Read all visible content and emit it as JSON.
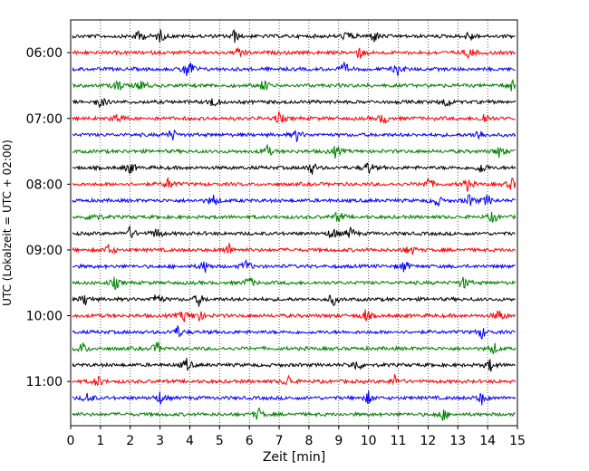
{
  "chart_data": {
    "type": "line",
    "subtype": "helicorder",
    "title": "",
    "xlabel": "Zeit  [min]",
    "ylabel": "UTC (Lokalzeit = UTC + 02:00)",
    "xlim": [
      0,
      15
    ],
    "x_ticks": [
      "0",
      "1",
      "2",
      "3",
      "4",
      "5",
      "6",
      "7",
      "8",
      "9",
      "10",
      "11",
      "12",
      "13",
      "14",
      "15"
    ],
    "y_tick_labels": [
      "06:00",
      "07:00",
      "08:00",
      "09:00",
      "10:00",
      "11:00"
    ],
    "trace_interval_minutes": 15,
    "trace_colors": [
      "#000000",
      "#ff0000",
      "#0000ff",
      "#008000"
    ],
    "vertical_grid": "dotted",
    "traces": [
      {
        "start": "05:45",
        "color": "#000000",
        "events": [
          2.3,
          3.0,
          5.5,
          9.3,
          10.2,
          13.4
        ]
      },
      {
        "start": "06:00",
        "color": "#ff0000",
        "events": [
          5.7,
          9.7,
          13.4
        ]
      },
      {
        "start": "06:15",
        "color": "#0000ff",
        "events": [
          3.9,
          4.0,
          9.2,
          11.0
        ]
      },
      {
        "start": "06:30",
        "color": "#008000",
        "events": [
          1.6,
          2.4,
          6.5,
          14.8
        ]
      },
      {
        "start": "06:45",
        "color": "#000000",
        "events": [
          1.0,
          4.8,
          12.6
        ]
      },
      {
        "start": "07:00",
        "color": "#ff0000",
        "events": [
          1.6,
          7.0,
          10.5,
          13.9
        ]
      },
      {
        "start": "07:15",
        "color": "#0000ff",
        "events": [
          3.4,
          7.6,
          13.7
        ]
      },
      {
        "start": "07:30",
        "color": "#008000",
        "events": [
          6.6,
          8.9,
          14.4
        ]
      },
      {
        "start": "07:45",
        "color": "#000000",
        "events": [
          2.0,
          8.1,
          10.0,
          13.8
        ]
      },
      {
        "start": "08:00",
        "color": "#ff0000",
        "events": [
          3.3,
          12.0,
          13.3,
          14.8
        ]
      },
      {
        "start": "08:15",
        "color": "#0000ff",
        "events": [
          4.8,
          12.3,
          13.4,
          14.0
        ]
      },
      {
        "start": "08:30",
        "color": "#008000",
        "events": [
          0.8,
          9.0,
          14.2
        ]
      },
      {
        "start": "08:45",
        "color": "#000000",
        "events": [
          2.0,
          2.9,
          8.8,
          9.4
        ]
      },
      {
        "start": "09:00",
        "color": "#ff0000",
        "events": [
          1.3,
          5.3,
          11.4
        ]
      },
      {
        "start": "09:15",
        "color": "#0000ff",
        "events": [
          4.5,
          5.9,
          11.2
        ]
      },
      {
        "start": "09:30",
        "color": "#008000",
        "events": [
          1.5,
          6.0,
          13.2
        ]
      },
      {
        "start": "09:45",
        "color": "#000000",
        "events": [
          0.5,
          2.9,
          4.3,
          8.8
        ]
      },
      {
        "start": "10:00",
        "color": "#ff0000",
        "events": [
          3.8,
          4.3,
          9.9,
          14.4
        ]
      },
      {
        "start": "10:15",
        "color": "#0000ff",
        "events": [
          3.6,
          13.8
        ]
      },
      {
        "start": "10:30",
        "color": "#008000",
        "events": [
          0.4,
          2.9,
          14.2
        ]
      },
      {
        "start": "10:45",
        "color": "#000000",
        "events": [
          3.9,
          9.6,
          14.1
        ]
      },
      {
        "start": "11:00",
        "color": "#ff0000",
        "events": [
          0.9,
          7.3,
          10.9
        ]
      },
      {
        "start": "11:15",
        "color": "#0000ff",
        "events": [
          0.6,
          3.0,
          10.0,
          13.8
        ]
      },
      {
        "start": "11:30",
        "color": "#008000",
        "events": [
          6.3,
          12.5
        ]
      }
    ]
  }
}
